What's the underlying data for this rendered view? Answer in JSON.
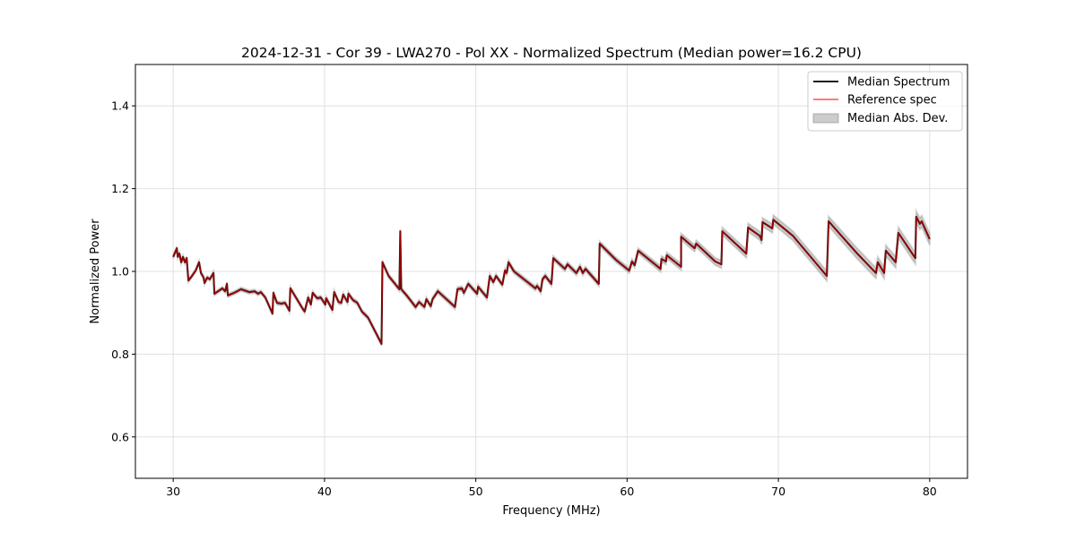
{
  "chart_data": {
    "type": "line",
    "title": "2024-12-31 - Cor 39 - LWA270 - Pol XX - Normalized Spectrum (Median power=16.2 CPU)",
    "xlabel": "Frequency (MHz)",
    "ylabel": "Normalized Power",
    "xlim": [
      27.5,
      82.5
    ],
    "ylim": [
      0.5,
      1.5
    ],
    "xticks": [
      30,
      40,
      50,
      60,
      70,
      80
    ],
    "xtick_labels": [
      "30",
      "40",
      "50",
      "60",
      "70",
      "80"
    ],
    "yticks": [
      0.6,
      0.8,
      1.0,
      1.2,
      1.4
    ],
    "ytick_labels": [
      "0.6",
      "0.8",
      "1.0",
      "1.2",
      "1.4"
    ],
    "grid": true,
    "legend_position": "top-right",
    "legend": [
      "Median Spectrum",
      "Reference spec",
      "Median Abs. Dev."
    ],
    "colors": {
      "median": "#000000",
      "reference": "#ff0000",
      "mad": "#999999"
    },
    "median_spectrum": [
      [
        30.0,
        1.035
      ],
      [
        30.24,
        1.056
      ],
      [
        30.3,
        1.035
      ],
      [
        30.41,
        1.043
      ],
      [
        30.53,
        1.022
      ],
      [
        30.65,
        1.035
      ],
      [
        30.77,
        1.022
      ],
      [
        30.89,
        1.032
      ],
      [
        31.0,
        0.978
      ],
      [
        31.24,
        0.989
      ],
      [
        31.48,
        1.002
      ],
      [
        31.71,
        1.022
      ],
      [
        31.83,
        0.996
      ],
      [
        32.01,
        0.985
      ],
      [
        32.07,
        0.972
      ],
      [
        32.25,
        0.985
      ],
      [
        32.42,
        0.981
      ],
      [
        32.66,
        0.996
      ],
      [
        32.72,
        0.946
      ],
      [
        33.25,
        0.959
      ],
      [
        33.43,
        0.952
      ],
      [
        33.55,
        0.97
      ],
      [
        33.61,
        0.942
      ],
      [
        34.02,
        0.948
      ],
      [
        34.49,
        0.957
      ],
      [
        35.02,
        0.95
      ],
      [
        35.38,
        0.952
      ],
      [
        35.61,
        0.946
      ],
      [
        35.79,
        0.95
      ],
      [
        36.09,
        0.937
      ],
      [
        36.56,
        0.898
      ],
      [
        36.62,
        0.948
      ],
      [
        36.86,
        0.924
      ],
      [
        37.15,
        0.922
      ],
      [
        37.39,
        0.924
      ],
      [
        37.68,
        0.905
      ],
      [
        37.74,
        0.959
      ],
      [
        38.57,
        0.909
      ],
      [
        38.69,
        0.903
      ],
      [
        38.92,
        0.937
      ],
      [
        39.1,
        0.92
      ],
      [
        39.22,
        0.948
      ],
      [
        39.52,
        0.935
      ],
      [
        39.75,
        0.937
      ],
      [
        40.05,
        0.92
      ],
      [
        40.11,
        0.935
      ],
      [
        40.52,
        0.907
      ],
      [
        40.64,
        0.95
      ],
      [
        40.93,
        0.926
      ],
      [
        41.11,
        0.924
      ],
      [
        41.23,
        0.944
      ],
      [
        41.52,
        0.926
      ],
      [
        41.58,
        0.946
      ],
      [
        41.88,
        0.931
      ],
      [
        42.17,
        0.924
      ],
      [
        42.47,
        0.903
      ],
      [
        42.88,
        0.888
      ],
      [
        43.77,
        0.825
      ],
      [
        43.83,
        1.022
      ],
      [
        44.24,
        0.989
      ],
      [
        44.95,
        0.957
      ],
      [
        45.01,
        1.097
      ],
      [
        45.07,
        0.957
      ],
      [
        45.43,
        0.942
      ],
      [
        46.02,
        0.914
      ],
      [
        46.25,
        0.926
      ],
      [
        46.61,
        0.914
      ],
      [
        46.73,
        0.933
      ],
      [
        47.02,
        0.916
      ],
      [
        47.14,
        0.933
      ],
      [
        47.49,
        0.952
      ],
      [
        48.62,
        0.914
      ],
      [
        48.79,
        0.957
      ],
      [
        49.09,
        0.959
      ],
      [
        49.21,
        0.948
      ],
      [
        49.5,
        0.97
      ],
      [
        50.09,
        0.946
      ],
      [
        50.15,
        0.963
      ],
      [
        50.74,
        0.937
      ],
      [
        50.92,
        0.989
      ],
      [
        51.16,
        0.974
      ],
      [
        51.34,
        0.989
      ],
      [
        51.75,
        0.968
      ],
      [
        51.93,
        1.002
      ],
      [
        52.04,
        0.996
      ],
      [
        52.16,
        1.022
      ],
      [
        52.52,
        1.0
      ],
      [
        53.94,
        0.959
      ],
      [
        54.05,
        0.965
      ],
      [
        54.29,
        0.952
      ],
      [
        54.41,
        0.981
      ],
      [
        54.59,
        0.989
      ],
      [
        55.0,
        0.97
      ],
      [
        55.12,
        1.032
      ],
      [
        55.89,
        1.006
      ],
      [
        56.06,
        1.017
      ],
      [
        56.65,
        0.996
      ],
      [
        56.89,
        1.011
      ],
      [
        57.07,
        0.996
      ],
      [
        57.25,
        1.006
      ],
      [
        58.13,
        0.97
      ],
      [
        58.19,
        1.067
      ],
      [
        59.26,
        1.028
      ],
      [
        60.14,
        1.002
      ],
      [
        60.32,
        1.024
      ],
      [
        60.5,
        1.015
      ],
      [
        60.73,
        1.05
      ],
      [
        62.21,
        1.006
      ],
      [
        62.27,
        1.03
      ],
      [
        62.57,
        1.024
      ],
      [
        62.62,
        1.039
      ],
      [
        63.57,
        1.011
      ],
      [
        63.57,
        1.084
      ],
      [
        64.46,
        1.056
      ],
      [
        64.57,
        1.067
      ],
      [
        65.82,
        1.024
      ],
      [
        66.23,
        1.017
      ],
      [
        66.29,
        1.097
      ],
      [
        67.88,
        1.043
      ],
      [
        68.0,
        1.106
      ],
      [
        68.77,
        1.086
      ],
      [
        68.89,
        1.076
      ],
      [
        68.95,
        1.119
      ],
      [
        69.6,
        1.104
      ],
      [
        69.66,
        1.125
      ],
      [
        70.96,
        1.086
      ],
      [
        73.2,
        0.989
      ],
      [
        73.32,
        1.121
      ],
      [
        75.21,
        1.043
      ],
      [
        76.45,
        0.996
      ],
      [
        76.57,
        1.022
      ],
      [
        76.99,
        0.996
      ],
      [
        77.1,
        1.05
      ],
      [
        77.75,
        1.022
      ],
      [
        77.93,
        1.093
      ],
      [
        79.05,
        1.032
      ],
      [
        79.11,
        1.132
      ],
      [
        79.35,
        1.115
      ],
      [
        79.47,
        1.121
      ],
      [
        80.0,
        1.078
      ]
    ],
    "median_abs_dev": [
      [
        30,
        0.004
      ],
      [
        45,
        0.005
      ],
      [
        60,
        0.006
      ],
      [
        66,
        0.009
      ],
      [
        70,
        0.011
      ],
      [
        80,
        0.014
      ]
    ]
  }
}
